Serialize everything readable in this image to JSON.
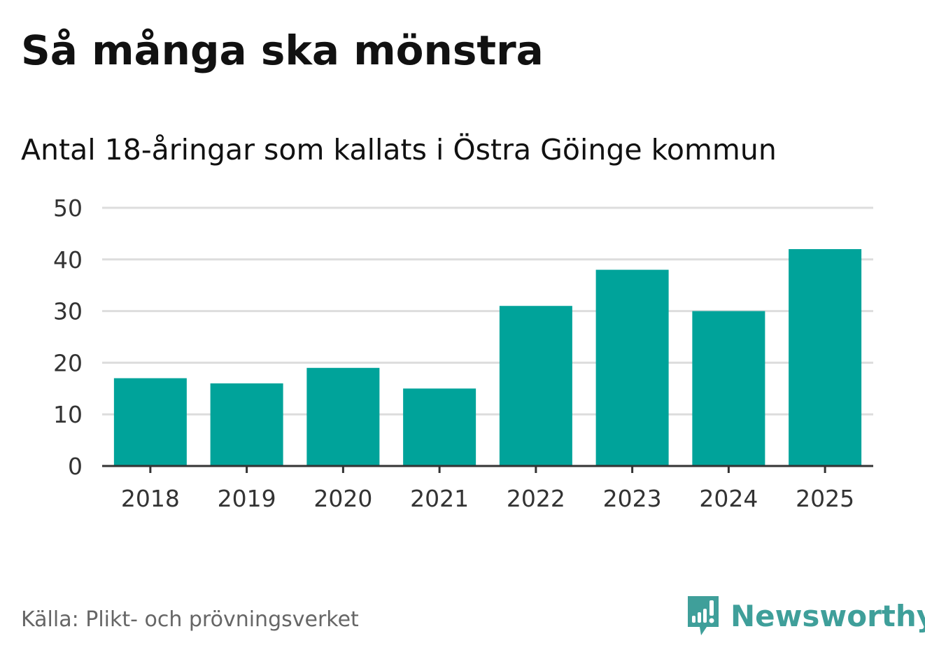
{
  "title": "Så många ska mönstra",
  "subtitle": "Antal 18-åringar som kallats i Östra Göinge kommun",
  "source": "Källa: Plikt- och prövningsverket",
  "brand": "Newsworthy",
  "colors": {
    "bar": "#00a39a",
    "grid": "#dddddd",
    "axis": "#333333",
    "brand": "#3f9f9a"
  },
  "chart_data": {
    "type": "bar",
    "categories": [
      "2018",
      "2019",
      "2020",
      "2021",
      "2022",
      "2023",
      "2024",
      "2025"
    ],
    "values": [
      17,
      16,
      19,
      15,
      31,
      38,
      30,
      42
    ],
    "title": "Så många ska mönstra",
    "subtitle": "Antal 18-åringar som kallats i Östra Göinge kommun",
    "ylim": [
      0,
      50
    ],
    "yticks": [
      0,
      10,
      20,
      30,
      40,
      50
    ],
    "grid": true
  }
}
